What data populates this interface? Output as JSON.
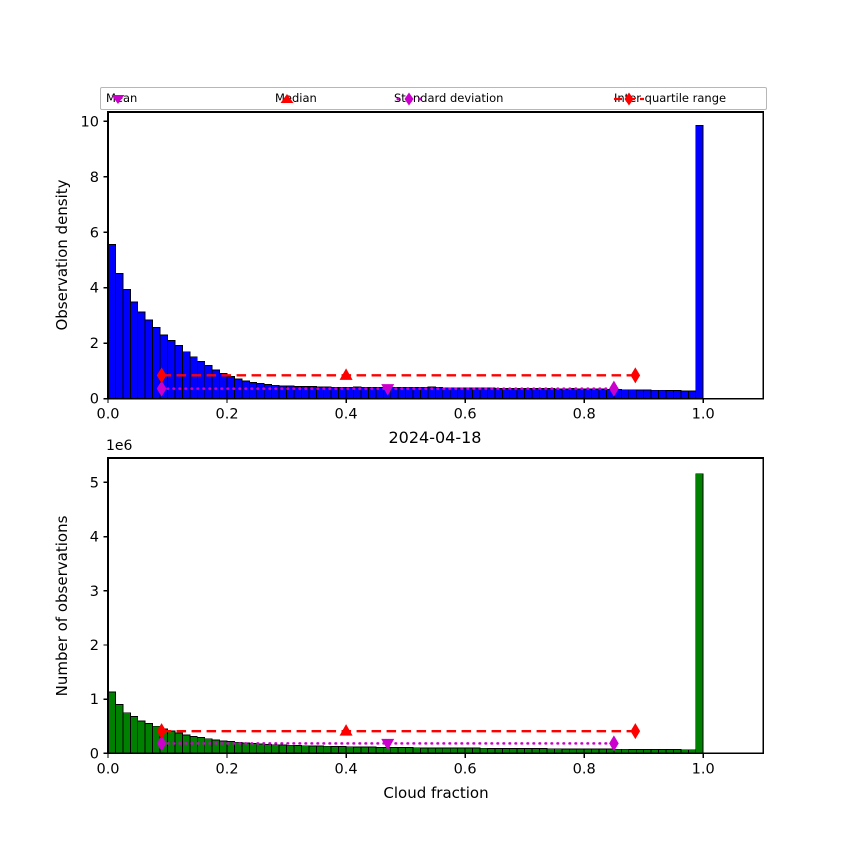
{
  "title": "2024-04-18",
  "legend": {
    "items": [
      {
        "label": "Mean",
        "marker": "triangle-down-icon"
      },
      {
        "label": "Median",
        "marker": "triangle-up-icon"
      },
      {
        "label": "Standard deviation",
        "marker": "diamond-dotted-line-icon"
      },
      {
        "label": "Inter quartile range",
        "marker": "diamond-dashed-line-icon"
      }
    ]
  },
  "colors": {
    "density_bar": "#0000FF",
    "count_bar": "#008000",
    "bar_edge": "#000000",
    "mean": "#CC00CC",
    "median": "#FF0000",
    "std": "#CC00CC",
    "iqr": "#FF0000",
    "frame": "#000000"
  },
  "labels": {
    "ylabel_top": "Observation density",
    "ylabel_bottom": "Number of observations",
    "xlabel": "Cloud fraction",
    "y_offset_bottom": "1e6"
  },
  "chart_data": [
    {
      "type": "bar",
      "name": "observation-density-histogram",
      "ylabel": "Observation density",
      "xlabel": "",
      "bin_start": 0,
      "bin_width": 0.0125,
      "xlim": [
        0,
        1.101
      ],
      "ylim": [
        0,
        10.34
      ],
      "xticks": [
        0,
        0.2,
        0.4,
        0.6,
        0.8,
        1.0
      ],
      "xtick_labels": [
        "0.0",
        "0.2",
        "0.4",
        "0.6",
        "0.8",
        "1.0"
      ],
      "yticks": [
        0,
        2,
        4,
        6,
        8,
        10
      ],
      "ytick_labels": [
        "0",
        "2",
        "4",
        "6",
        "8",
        "10"
      ],
      "values": [
        5.56,
        4.52,
        3.93,
        3.48,
        3.13,
        2.83,
        2.57,
        2.29,
        2.09,
        1.91,
        1.69,
        1.51,
        1.34,
        1.19,
        1.03,
        0.91,
        0.8,
        0.71,
        0.64,
        0.58,
        0.54,
        0.51,
        0.48,
        0.46,
        0.45,
        0.44,
        0.43,
        0.43,
        0.42,
        0.42,
        0.41,
        0.41,
        0.41,
        0.42,
        0.41,
        0.4,
        0.4,
        0.41,
        0.4,
        0.4,
        0.41,
        0.4,
        0.41,
        0.42,
        0.4,
        0.39,
        0.39,
        0.38,
        0.38,
        0.38,
        0.38,
        0.38,
        0.37,
        0.37,
        0.37,
        0.37,
        0.36,
        0.36,
        0.36,
        0.36,
        0.35,
        0.35,
        0.36,
        0.35,
        0.35,
        0.34,
        0.34,
        0.33,
        0.33,
        0.32,
        0.32,
        0.31,
        0.31,
        0.3,
        0.3,
        0.29,
        0.29,
        0.28,
        0.28,
        9.85
      ],
      "stats": {
        "mean_marker": {
          "x": 0.47,
          "y": 0.36
        },
        "median_marker": {
          "x": 0.4,
          "y": 0.84
        },
        "std_line": {
          "x1": 0.09,
          "x2": 0.85,
          "y": 0.36
        },
        "iqr_line": {
          "x1": 0.09,
          "x2": 0.886,
          "y": 0.84
        }
      }
    },
    {
      "type": "bar",
      "name": "number-of-observations-histogram",
      "ylabel": "Number of observations",
      "xlabel": "Cloud fraction",
      "y_unit": "1e6",
      "bin_start": 0,
      "bin_width": 0.0125,
      "xlim": [
        0,
        1.101
      ],
      "ylim": [
        0,
        5.45
      ],
      "xticks": [
        0,
        0.2,
        0.4,
        0.6,
        0.8,
        1.0
      ],
      "xtick_labels": [
        "0.0",
        "0.2",
        "0.4",
        "0.6",
        "0.8",
        "1.0"
      ],
      "yticks": [
        0,
        1,
        2,
        3,
        4,
        5
      ],
      "ytick_labels": [
        "0",
        "1",
        "2",
        "3",
        "4",
        "5"
      ],
      "values": [
        1.13,
        0.9,
        0.75,
        0.68,
        0.6,
        0.55,
        0.5,
        0.45,
        0.41,
        0.38,
        0.34,
        0.31,
        0.29,
        0.27,
        0.25,
        0.23,
        0.22,
        0.205,
        0.19,
        0.18,
        0.17,
        0.165,
        0.16,
        0.155,
        0.15,
        0.145,
        0.142,
        0.138,
        0.135,
        0.132,
        0.128,
        0.125,
        0.122,
        0.12,
        0.117,
        0.115,
        0.112,
        0.11,
        0.109,
        0.107,
        0.106,
        0.104,
        0.103,
        0.102,
        0.101,
        0.1,
        0.099,
        0.098,
        0.097,
        0.096,
        0.095,
        0.094,
        0.093,
        0.092,
        0.091,
        0.09,
        0.089,
        0.088,
        0.087,
        0.086,
        0.085,
        0.084,
        0.083,
        0.082,
        0.081,
        0.08,
        0.079,
        0.078,
        0.077,
        0.076,
        0.075,
        0.074,
        0.073,
        0.072,
        0.071,
        0.07,
        0.069,
        0.068,
        0.068,
        5.16
      ],
      "stats": {
        "mean_marker": {
          "x": 0.47,
          "y": 0.185
        },
        "median_marker": {
          "x": 0.4,
          "y": 0.41
        },
        "std_line": {
          "x1": 0.09,
          "x2": 0.85,
          "y": 0.185
        },
        "iqr_line": {
          "x1": 0.09,
          "x2": 0.886,
          "y": 0.41
        }
      }
    }
  ]
}
